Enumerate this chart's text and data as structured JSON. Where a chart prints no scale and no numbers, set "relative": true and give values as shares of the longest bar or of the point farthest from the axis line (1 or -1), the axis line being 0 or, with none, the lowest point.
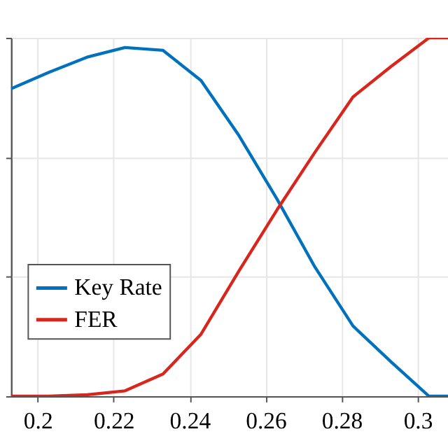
{
  "chart_data": {
    "type": "line",
    "relative": true,
    "x": [
      0.193,
      0.203,
      0.213,
      0.223,
      0.233,
      0.243,
      0.253,
      0.263,
      0.273,
      0.283,
      0.293,
      0.303,
      0.308
    ],
    "series": [
      {
        "name": "Key Rate",
        "color": "#0072bd",
        "values": [
          0.858,
          0.904,
          0.946,
          0.973,
          0.965,
          0.881,
          0.727,
          0.55,
          0.36,
          0.196,
          0.096,
          0,
          0
        ]
      },
      {
        "name": "FER",
        "color": "#d9261c",
        "values": [
          0,
          0,
          0.004,
          0.015,
          0.062,
          0.173,
          0.35,
          0.52,
          0.681,
          0.835,
          0.92,
          1,
          1
        ]
      }
    ],
    "xlim": [
      0.193,
      0.308
    ],
    "xticks": [
      0.2,
      0.22,
      0.24,
      0.26,
      0.28,
      0.3
    ],
    "grid": true,
    "legend": "left",
    "tick_labels": "x",
    "line_style": "solid"
  }
}
